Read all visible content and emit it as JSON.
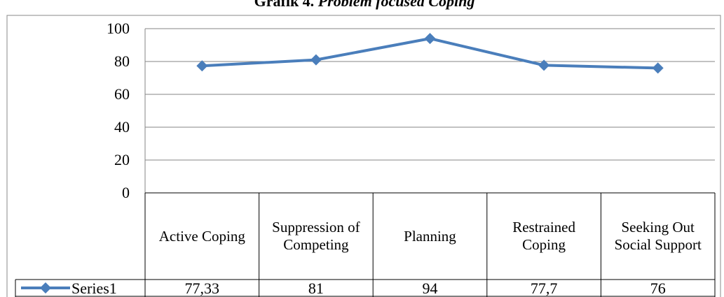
{
  "chart_data": {
    "type": "line",
    "title_parts": [
      "Grafik 4.",
      "Problem focused Coping"
    ],
    "categories": [
      "Active Coping",
      "Suppression of Competing",
      "Planning",
      "Restrained Coping",
      "Seeking Out Social Support"
    ],
    "series": [
      {
        "name": "Series1",
        "color": "#4a7ebb",
        "values": [
          77.33,
          81,
          94,
          77.7,
          76
        ],
        "value_labels": [
          "77,33",
          "81",
          "94",
          "77,7",
          "76"
        ]
      }
    ],
    "ylim": [
      0,
      100
    ],
    "yticks": [
      0,
      20,
      40,
      60,
      80,
      100
    ],
    "grid": true
  }
}
